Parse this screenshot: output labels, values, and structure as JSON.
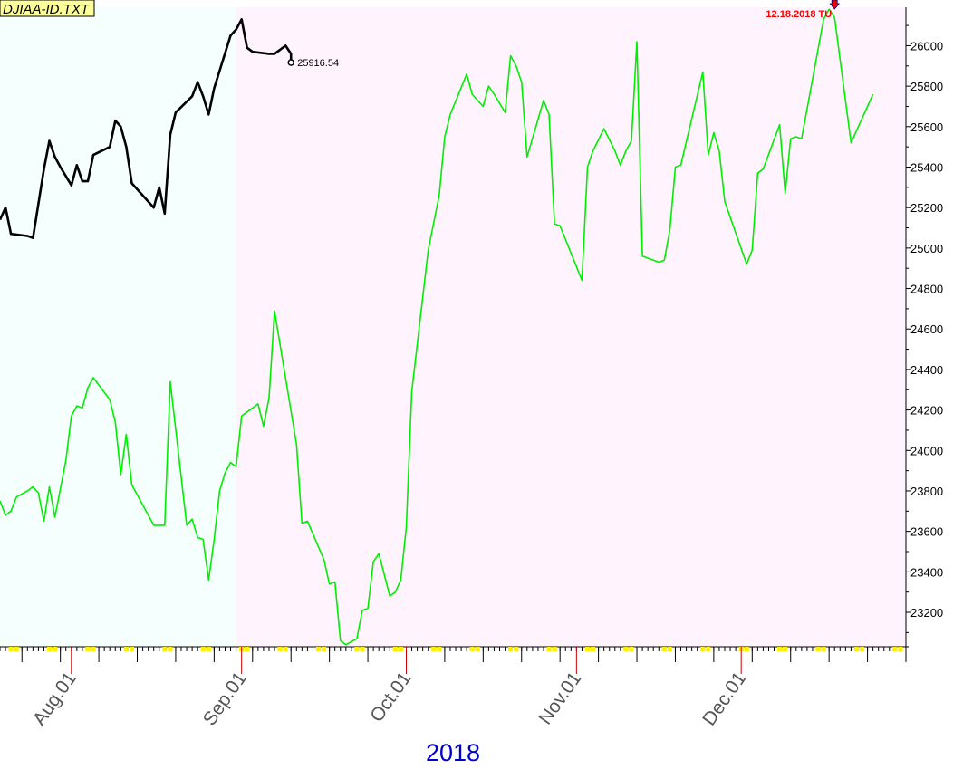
{
  "title": "DJIAA-ID.TXT",
  "year_label": "2018",
  "last_value_label": "25916.54",
  "marker_label": "12.18.2018 TU",
  "colors": {
    "projection_bg": "#f5fffe",
    "actual_bg": "#fff3fd",
    "projection_line": "#00ee00",
    "actual_line": "#000000",
    "marker": "#ee0000",
    "title_bg": "#ffff99",
    "year_text": "#0000cc",
    "tick_marker": "#ffee00"
  },
  "chart_data": {
    "type": "line",
    "title": "DJIAA-ID.TXT",
    "xlabel": "2018",
    "ylabel": "",
    "ylim": [
      23030,
      26190
    ],
    "xlim": [
      "2018-07-19",
      "2018-12-31"
    ],
    "shaded_regions": [
      {
        "from": "2018-07-19",
        "to": "2018-08-31",
        "color": "#f5fffe"
      },
      {
        "from": "2018-08-31",
        "to": "2018-12-31",
        "color": "#fff3fd"
      }
    ],
    "x_tick_labels": [
      {
        "date": "2018-08-01",
        "label": "Aug.01"
      },
      {
        "date": "2018-09-01",
        "label": "Sep.01"
      },
      {
        "date": "2018-10-01",
        "label": "Oct.01"
      },
      {
        "date": "2018-11-01",
        "label": "Nov.01"
      },
      {
        "date": "2018-12-01",
        "label": "Dec.01"
      }
    ],
    "y_ticks": [
      23200,
      23400,
      23600,
      23800,
      24000,
      24200,
      24400,
      24600,
      24800,
      25000,
      25200,
      25400,
      25600,
      25800,
      26000
    ],
    "series": [
      {
        "style": "projection",
        "color": "#00ee00",
        "points": [
          [
            "2018-07-19",
            23750
          ],
          [
            "2018-07-20",
            23680
          ],
          [
            "2018-07-21",
            23700
          ],
          [
            "2018-07-22",
            23770
          ],
          [
            "2018-07-24",
            23800
          ],
          [
            "2018-07-25",
            23820
          ],
          [
            "2018-07-26",
            23790
          ],
          [
            "2018-07-27",
            23650
          ],
          [
            "2018-07-28",
            23820
          ],
          [
            "2018-07-29",
            23670
          ],
          [
            "2018-07-31",
            23950
          ],
          [
            "2018-08-01",
            24170
          ],
          [
            "2018-08-02",
            24220
          ],
          [
            "2018-08-03",
            24210
          ],
          [
            "2018-08-04",
            24310
          ],
          [
            "2018-08-05",
            24360
          ],
          [
            "2018-08-08",
            24250
          ],
          [
            "2018-08-09",
            24140
          ],
          [
            "2018-08-10",
            23880
          ],
          [
            "2018-08-11",
            24080
          ],
          [
            "2018-08-12",
            23830
          ],
          [
            "2018-08-16",
            23630
          ],
          [
            "2018-08-18",
            23630
          ],
          [
            "2018-08-19",
            24340
          ],
          [
            "2018-08-22",
            23630
          ],
          [
            "2018-08-23",
            23660
          ],
          [
            "2018-08-24",
            23570
          ],
          [
            "2018-08-25",
            23560
          ],
          [
            "2018-08-26",
            23360
          ],
          [
            "2018-08-27",
            23560
          ],
          [
            "2018-08-28",
            23800
          ],
          [
            "2018-08-29",
            23890
          ],
          [
            "2018-08-30",
            23940
          ],
          [
            "2018-08-31",
            23920
          ],
          [
            "2018-09-01",
            24170
          ],
          [
            "2018-09-04",
            24230
          ],
          [
            "2018-09-05",
            24120
          ],
          [
            "2018-09-06",
            24260
          ],
          [
            "2018-09-07",
            24690
          ],
          [
            "2018-09-11",
            24030
          ],
          [
            "2018-09-12",
            23640
          ],
          [
            "2018-09-13",
            23650
          ],
          [
            "2018-09-16",
            23460
          ],
          [
            "2018-09-17",
            23340
          ],
          [
            "2018-09-18",
            23350
          ],
          [
            "2018-09-19",
            23060
          ],
          [
            "2018-09-20",
            23040
          ],
          [
            "2018-09-22",
            23070
          ],
          [
            "2018-09-23",
            23210
          ],
          [
            "2018-09-24",
            23220
          ],
          [
            "2018-09-25",
            23450
          ],
          [
            "2018-09-26",
            23490
          ],
          [
            "2018-09-28",
            23280
          ],
          [
            "2018-09-29",
            23300
          ],
          [
            "2018-09-30",
            23360
          ],
          [
            "2018-10-01",
            23620
          ],
          [
            "2018-10-02",
            24290
          ],
          [
            "2018-10-05",
            24990
          ],
          [
            "2018-10-07",
            25260
          ],
          [
            "2018-10-08",
            25550
          ],
          [
            "2018-10-09",
            25660
          ],
          [
            "2018-10-12",
            25860
          ],
          [
            "2018-10-13",
            25760
          ],
          [
            "2018-10-15",
            25700
          ],
          [
            "2018-10-16",
            25800
          ],
          [
            "2018-10-17",
            25760
          ],
          [
            "2018-10-19",
            25670
          ],
          [
            "2018-10-20",
            25950
          ],
          [
            "2018-10-21",
            25900
          ],
          [
            "2018-10-22",
            25820
          ],
          [
            "2018-10-23",
            25450
          ],
          [
            "2018-10-26",
            25730
          ],
          [
            "2018-10-27",
            25660
          ],
          [
            "2018-10-28",
            25120
          ],
          [
            "2018-10-29",
            25110
          ],
          [
            "2018-11-02",
            24840
          ],
          [
            "2018-11-03",
            25400
          ],
          [
            "2018-11-04",
            25480
          ],
          [
            "2018-11-06",
            25590
          ],
          [
            "2018-11-08",
            25480
          ],
          [
            "2018-11-09",
            25410
          ],
          [
            "2018-11-10",
            25480
          ],
          [
            "2018-11-11",
            25530
          ],
          [
            "2018-11-12",
            26020
          ],
          [
            "2018-11-13",
            24960
          ],
          [
            "2018-11-16",
            24930
          ],
          [
            "2018-11-17",
            24940
          ],
          [
            "2018-11-18",
            25090
          ],
          [
            "2018-11-19",
            25400
          ],
          [
            "2018-11-20",
            25410
          ],
          [
            "2018-11-24",
            25870
          ],
          [
            "2018-11-25",
            25460
          ],
          [
            "2018-11-26",
            25570
          ],
          [
            "2018-11-27",
            25480
          ],
          [
            "2018-11-28",
            25230
          ],
          [
            "2018-12-02",
            24920
          ],
          [
            "2018-12-03",
            24990
          ],
          [
            "2018-12-04",
            25370
          ],
          [
            "2018-12-05",
            25390
          ],
          [
            "2018-12-08",
            25610
          ],
          [
            "2018-12-09",
            25270
          ],
          [
            "2018-12-10",
            25540
          ],
          [
            "2018-12-11",
            25550
          ],
          [
            "2018-12-12",
            25540
          ],
          [
            "2018-12-16",
            26130
          ],
          [
            "2018-12-17",
            26180
          ],
          [
            "2018-12-18",
            26140
          ],
          [
            "2018-12-21",
            25520
          ],
          [
            "2018-12-24",
            25700
          ],
          [
            "2018-12-25",
            25760
          ]
        ]
      },
      {
        "style": "actual",
        "color": "#000000",
        "points": [
          [
            "2018-07-19",
            25140
          ],
          [
            "2018-07-20",
            25200
          ],
          [
            "2018-07-21",
            25070
          ],
          [
            "2018-07-24",
            25060
          ],
          [
            "2018-07-25",
            25050
          ],
          [
            "2018-07-27",
            25390
          ],
          [
            "2018-07-28",
            25530
          ],
          [
            "2018-07-29",
            25450
          ],
          [
            "2018-07-30",
            25400
          ],
          [
            "2018-08-01",
            25310
          ],
          [
            "2018-08-02",
            25410
          ],
          [
            "2018-08-03",
            25330
          ],
          [
            "2018-08-04",
            25330
          ],
          [
            "2018-08-05",
            25460
          ],
          [
            "2018-08-08",
            25500
          ],
          [
            "2018-08-09",
            25630
          ],
          [
            "2018-08-10",
            25600
          ],
          [
            "2018-08-11",
            25500
          ],
          [
            "2018-08-12",
            25320
          ],
          [
            "2018-08-16",
            25200
          ],
          [
            "2018-08-17",
            25300
          ],
          [
            "2018-08-18",
            25170
          ],
          [
            "2018-08-19",
            25560
          ],
          [
            "2018-08-20",
            25670
          ],
          [
            "2018-08-23",
            25750
          ],
          [
            "2018-08-24",
            25820
          ],
          [
            "2018-08-25",
            25750
          ],
          [
            "2018-08-26",
            25660
          ],
          [
            "2018-08-27",
            25790
          ],
          [
            "2018-08-30",
            26050
          ],
          [
            "2018-08-31",
            26080
          ],
          [
            "2018-09-01",
            26130
          ],
          [
            "2018-09-02",
            25990
          ],
          [
            "2018-09-03",
            25970
          ],
          [
            "2018-09-06",
            25960
          ],
          [
            "2018-09-07",
            25960
          ],
          [
            "2018-09-09",
            26000
          ],
          [
            "2018-09-10",
            25960
          ],
          [
            "2018-09-10",
            25917
          ]
        ]
      }
    ]
  }
}
